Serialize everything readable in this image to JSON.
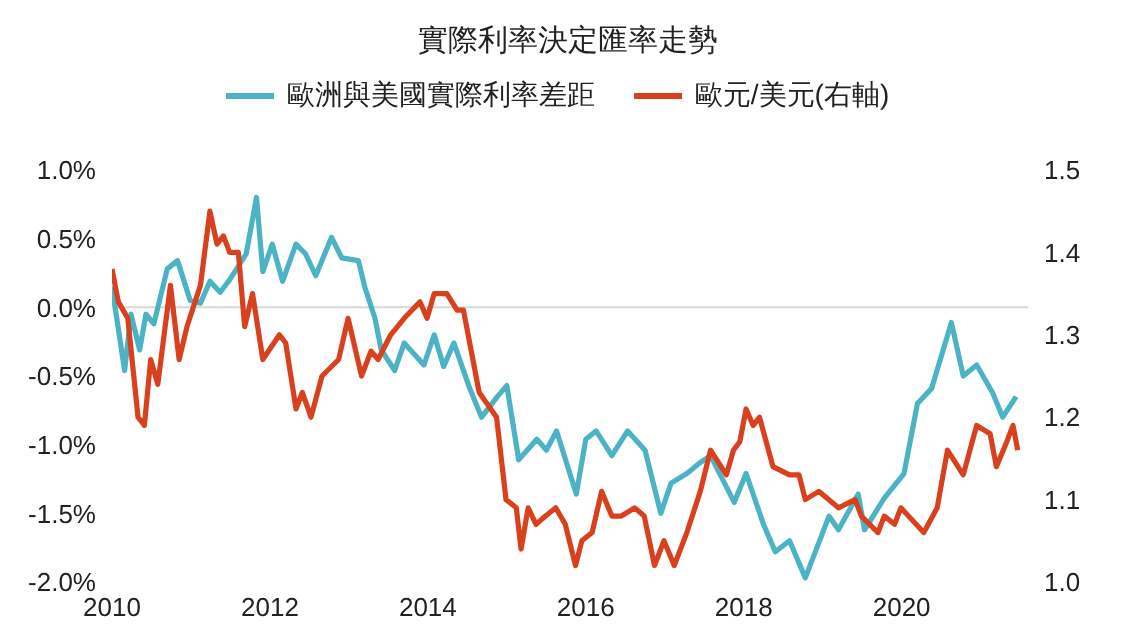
{
  "chart_data": {
    "type": "line",
    "title": "實際利率決定匯率走勢",
    "legend": "top",
    "grid": false,
    "marker": "none",
    "line_style": "solid",
    "xlim": [
      2010,
      2021.6
    ],
    "xticks": [
      2010,
      2012,
      2014,
      2016,
      2018,
      2020
    ],
    "ylim": [
      -2.0,
      1.0
    ],
    "yticks": [
      {
        "value": -2.0,
        "label": "-2.0%"
      },
      {
        "value": -1.5,
        "label": "-1.5%"
      },
      {
        "value": -1.0,
        "label": "-1.0%"
      },
      {
        "value": -0.5,
        "label": "-0.5%"
      },
      {
        "value": 0.0,
        "label": "0.0%"
      },
      {
        "value": 0.5,
        "label": "0.5%"
      },
      {
        "value": 1.0,
        "label": "1.0%"
      }
    ],
    "y2lim": [
      1.0,
      1.5
    ],
    "y2ticks": [
      {
        "value": 1.0,
        "label": "1.0"
      },
      {
        "value": 1.1,
        "label": "1.1"
      },
      {
        "value": 1.2,
        "label": "1.2"
      },
      {
        "value": 1.3,
        "label": "1.3"
      },
      {
        "value": 1.4,
        "label": "1.4"
      },
      {
        "value": 1.5,
        "label": "1.5"
      }
    ],
    "ref_lines": [
      {
        "axis": "y",
        "value": 0,
        "color": "#d9d9d9"
      }
    ],
    "series": [
      {
        "name": "歐洲與美國實際利率差距",
        "color": "#4bb3c4",
        "x": [
          2010.0,
          2010.16,
          2010.24,
          2010.35,
          2010.43,
          2010.53,
          2010.7,
          2010.83,
          2010.99,
          2011.12,
          2011.24,
          2011.37,
          2011.49,
          2011.7,
          2011.83,
          2011.91,
          2012.03,
          2012.16,
          2012.33,
          2012.45,
          2012.58,
          2012.78,
          2012.91,
          2013.12,
          2013.2,
          2013.33,
          2013.41,
          2013.58,
          2013.7,
          2013.95,
          2014.08,
          2014.2,
          2014.33,
          2014.53,
          2014.68,
          2014.88,
          2015.0,
          2015.15,
          2015.38,
          2015.5,
          2015.63,
          2015.88,
          2016.0,
          2016.13,
          2016.33,
          2016.53,
          2016.75,
          2016.95,
          2017.08,
          2017.28,
          2017.45,
          2017.58,
          2017.88,
          2018.03,
          2018.25,
          2018.4,
          2018.58,
          2018.78,
          2019.08,
          2019.2,
          2019.45,
          2019.53,
          2019.78,
          2020.03,
          2020.2,
          2020.38,
          2020.63,
          2020.78,
          2020.95,
          2021.15,
          2021.28,
          2021.45
        ],
        "values": [
          0.15,
          -0.46,
          -0.05,
          -0.31,
          -0.05,
          -0.12,
          0.28,
          0.34,
          0.05,
          0.03,
          0.19,
          0.11,
          0.2,
          0.39,
          0.8,
          0.26,
          0.46,
          0.19,
          0.46,
          0.39,
          0.23,
          0.51,
          0.36,
          0.34,
          0.15,
          -0.08,
          -0.31,
          -0.46,
          -0.26,
          -0.42,
          -0.2,
          -0.43,
          -0.26,
          -0.59,
          -0.8,
          -0.65,
          -0.57,
          -1.11,
          -0.96,
          -1.04,
          -0.9,
          -1.36,
          -0.96,
          -0.9,
          -1.08,
          -0.9,
          -1.04,
          -1.5,
          -1.28,
          -1.21,
          -1.13,
          -1.08,
          -1.42,
          -1.21,
          -1.58,
          -1.78,
          -1.7,
          -1.97,
          -1.52,
          -1.62,
          -1.36,
          -1.62,
          -1.39,
          -1.21,
          -0.7,
          -0.59,
          -0.11,
          -0.5,
          -0.42,
          -0.62,
          -0.8,
          -0.65
        ]
      },
      {
        "name": "歐元/美元(右軸)",
        "color": "#d9401e",
        "axis": "y2",
        "x": [
          2010.0,
          2010.08,
          2010.2,
          2010.33,
          2010.41,
          2010.49,
          2010.58,
          2010.74,
          2010.85,
          2010.95,
          2011.12,
          2011.24,
          2011.33,
          2011.41,
          2011.49,
          2011.6,
          2011.68,
          2011.78,
          2011.91,
          2012.12,
          2012.2,
          2012.33,
          2012.41,
          2012.52,
          2012.66,
          2012.87,
          2012.99,
          2013.16,
          2013.28,
          2013.37,
          2013.53,
          2013.7,
          2013.9,
          2013.99,
          2014.08,
          2014.24,
          2014.37,
          2014.45,
          2014.65,
          2014.87,
          2014.99,
          2015.12,
          2015.18,
          2015.27,
          2015.37,
          2015.49,
          2015.62,
          2015.74,
          2015.87,
          2015.95,
          2016.08,
          2016.2,
          2016.33,
          2016.45,
          2016.62,
          2016.74,
          2016.87,
          2016.99,
          2017.12,
          2017.28,
          2017.45,
          2017.58,
          2017.78,
          2017.87,
          2017.95,
          2018.03,
          2018.12,
          2018.2,
          2018.37,
          2018.58,
          2018.7,
          2018.78,
          2018.95,
          2019.2,
          2019.41,
          2019.49,
          2019.7,
          2019.78,
          2019.91,
          2019.99,
          2020.28,
          2020.45,
          2020.58,
          2020.78,
          2020.95,
          2021.12,
          2021.2,
          2021.33,
          2021.41,
          2021.47
        ],
        "values": [
          1.38,
          1.34,
          1.32,
          1.2,
          1.19,
          1.27,
          1.24,
          1.36,
          1.27,
          1.31,
          1.36,
          1.45,
          1.41,
          1.42,
          1.4,
          1.4,
          1.31,
          1.35,
          1.27,
          1.3,
          1.29,
          1.21,
          1.23,
          1.2,
          1.25,
          1.27,
          1.32,
          1.25,
          1.28,
          1.27,
          1.3,
          1.32,
          1.34,
          1.32,
          1.35,
          1.35,
          1.33,
          1.33,
          1.23,
          1.2,
          1.1,
          1.09,
          1.04,
          1.09,
          1.07,
          1.08,
          1.09,
          1.07,
          1.02,
          1.05,
          1.06,
          1.11,
          1.08,
          1.08,
          1.09,
          1.08,
          1.02,
          1.05,
          1.02,
          1.06,
          1.11,
          1.16,
          1.13,
          1.16,
          1.17,
          1.21,
          1.19,
          1.2,
          1.14,
          1.13,
          1.13,
          1.1,
          1.11,
          1.09,
          1.1,
          1.08,
          1.06,
          1.08,
          1.07,
          1.09,
          1.06,
          1.09,
          1.16,
          1.13,
          1.19,
          1.18,
          1.14,
          1.17,
          1.19,
          1.16
        ]
      }
    ]
  }
}
